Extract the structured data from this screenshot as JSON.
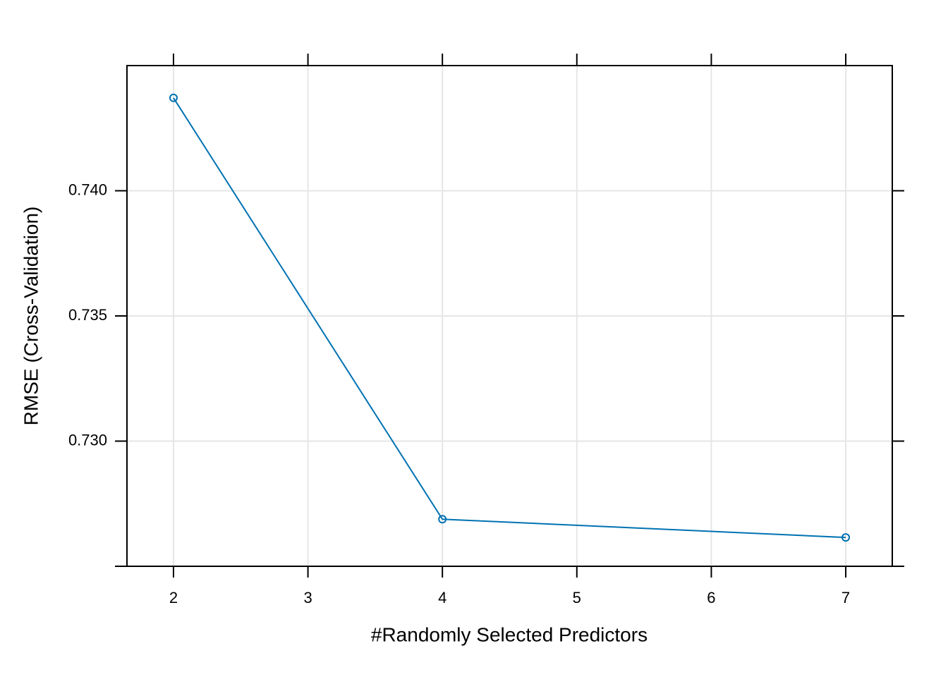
{
  "chart_data": {
    "type": "line",
    "x_label": "#Randomly Selected Predictors",
    "y_label": "RMSE (Cross-Validation)",
    "series": [
      {
        "color": "#0072b2",
        "x": [
          2,
          4,
          7
        ],
        "values": [
          0.74371,
          0.72688,
          0.72615
        ]
      }
    ],
    "xlim": [
      1.654,
      7.346
    ],
    "xticks": [
      2,
      3,
      4,
      5,
      6,
      7
    ],
    "ylim": [
      0.725,
      0.745
    ],
    "yticks": [
      {
        "value": 0.725,
        "label": null
      },
      {
        "value": 0.73,
        "label": "0.730"
      },
      {
        "value": 0.735,
        "label": "0.735"
      },
      {
        "value": 0.74,
        "label": "0.740"
      }
    ],
    "grid": true
  }
}
